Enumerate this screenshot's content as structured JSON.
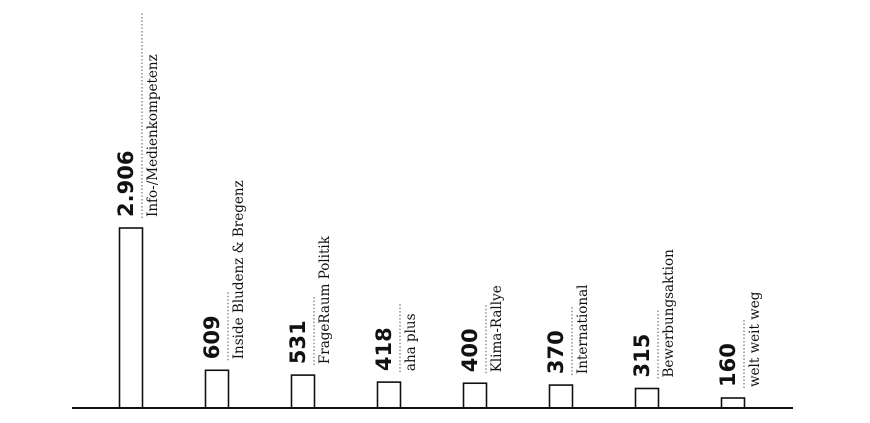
{
  "chart_data": {
    "type": "bar",
    "categories": [
      "Info-/Medienkompetenz",
      "Inside Bludenz & Bregenz",
      "FrageRaum Politik",
      "aha plus",
      "Klima-Rallye",
      "International",
      "Bewerbungsaktion",
      "welt weit weg"
    ],
    "values": [
      2906,
      609,
      531,
      418,
      400,
      370,
      315,
      160
    ],
    "value_labels": [
      "2.906",
      "609",
      "531",
      "418",
      "400",
      "370",
      "315",
      "160"
    ],
    "ylim": [
      0,
      2906
    ],
    "grid": false,
    "legend": "none",
    "colors": {
      "bar_fill": "#ffffff",
      "bar_stroke": "#111111",
      "text": "#111111"
    }
  }
}
